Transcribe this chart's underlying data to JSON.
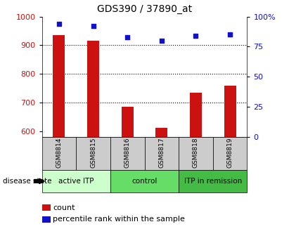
{
  "title": "GDS390 / 37890_at",
  "samples": [
    "GSM8814",
    "GSM8815",
    "GSM8816",
    "GSM8817",
    "GSM8818",
    "GSM8819"
  ],
  "count_values": [
    935,
    915,
    685,
    612,
    733,
    758
  ],
  "percentile_values": [
    94,
    92,
    83,
    80,
    84,
    85
  ],
  "ylim_left": [
    580,
    1000
  ],
  "ylim_right": [
    0,
    100
  ],
  "yticks_left": [
    600,
    700,
    800,
    900,
    1000
  ],
  "yticks_right": [
    0,
    25,
    50,
    75,
    100
  ],
  "ytick_labels_right": [
    "0",
    "25",
    "50",
    "75",
    "100%"
  ],
  "bar_color": "#cc1111",
  "scatter_color": "#1111cc",
  "grid_color": "#000000",
  "bg_color": "#ffffff",
  "disease_groups": [
    {
      "label": "active ITP",
      "samples": [
        0,
        1
      ],
      "color": "#ccffcc"
    },
    {
      "label": "control",
      "samples": [
        2,
        3
      ],
      "color": "#66dd66"
    },
    {
      "label": "ITP in remission",
      "samples": [
        4,
        5
      ],
      "color": "#44bb44"
    }
  ],
  "sample_box_color": "#cccccc",
  "legend_count_color": "#cc1111",
  "legend_pct_color": "#1111cc",
  "legend_count_label": "count",
  "legend_pct_label": "percentile rank within the sample",
  "disease_state_label": "disease state"
}
